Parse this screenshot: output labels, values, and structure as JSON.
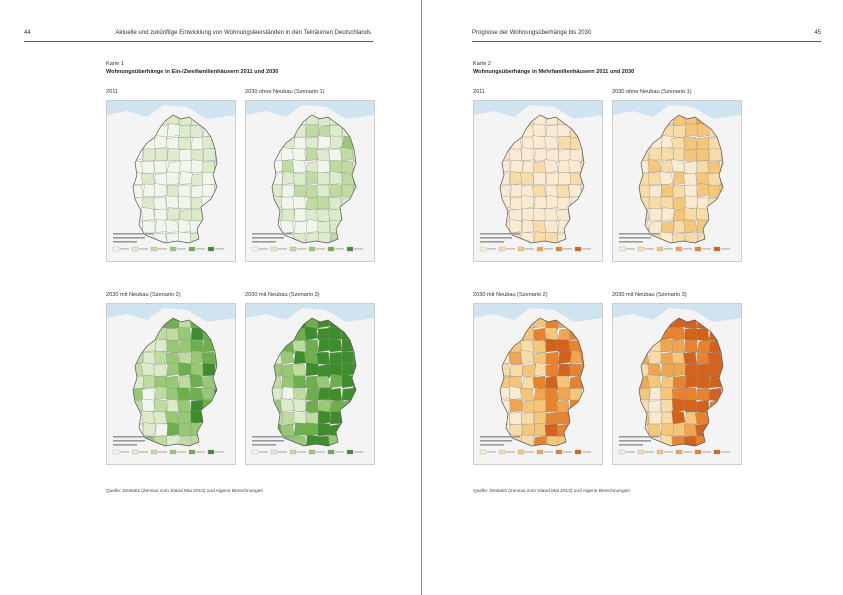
{
  "left_page": {
    "page_number": "44",
    "running_header": "Aktuelle und zukünftige Entwicklung von Wohnungsleerständen in den Teilräumen Deutschlands",
    "map_label": "Karte 1",
    "map_title": "Wohnungsüberhänge in Ein-/Zweifamilienhäusern 2011 und 2030",
    "panels": [
      {
        "caption": "2011"
      },
      {
        "caption": "2030 ohne Neubau (Szenario 1)"
      },
      {
        "caption": "2030 mit Neubau (Szenario 2)"
      },
      {
        "caption": "2030 mit Neubau (Szenario 3)"
      }
    ],
    "source": "Quelle: Destatis (Zensus zum Stand Mai 2013) und eigene Berechnungen"
  },
  "right_page": {
    "page_number": "45",
    "running_header": "Prognose der Wohnungsüberhänge bis 2030",
    "map_label": "Karte 2",
    "map_title": "Wohnungsüberhänge in Mehrfamilienhäusern 2011 und 2030",
    "panels": [
      {
        "caption": "2011"
      },
      {
        "caption": "2030 ohne Neubau (Szenario 1)"
      },
      {
        "caption": "2030 mit Neubau (Szenario 2)"
      },
      {
        "caption": "2030 mit Neubau (Szenario 3)"
      }
    ],
    "source": "Quelle: Destatis (Zensus zum Stand Mai 2013) und eigene Berechnungen"
  },
  "palettes": {
    "green": [
      "#f1f6ea",
      "#dcebc9",
      "#bfdca0",
      "#97c873",
      "#6cb04c",
      "#3e8d2b"
    ],
    "orange": [
      "#fbead2",
      "#f8dca8",
      "#f5c67a",
      "#efa651",
      "#e8822d",
      "#d5621b"
    ],
    "sea": "#cfe3f1",
    "neighbor": "#ececec"
  },
  "map_intensity": [
    0.25,
    0.45,
    0.75,
    0.95
  ]
}
